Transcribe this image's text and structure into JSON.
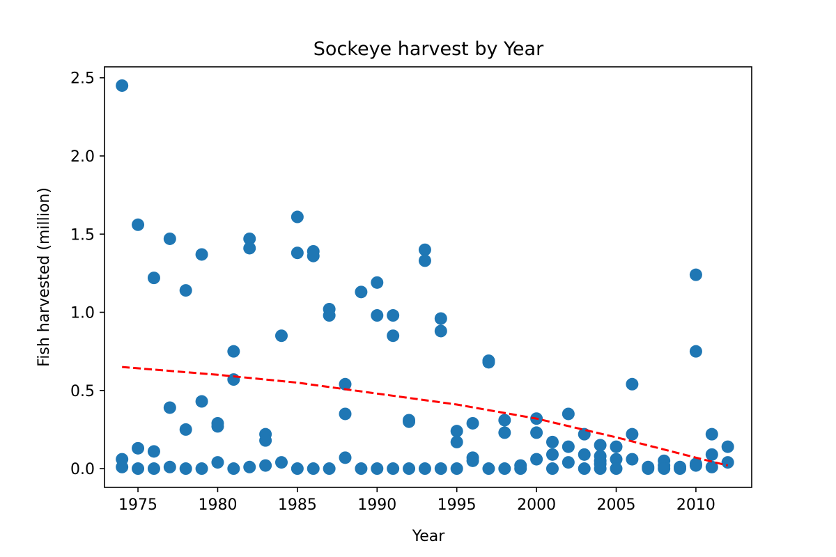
{
  "chart_data": {
    "type": "scatter",
    "title": "Sockeye harvest by Year",
    "xlabel": "Year",
    "ylabel": "Fish harvested (million)",
    "xlim": [
      1972.9,
      2013.5
    ],
    "ylim": [
      -0.12,
      2.57
    ],
    "x_ticks": [
      1975,
      1980,
      1985,
      1990,
      1995,
      2000,
      2005,
      2010
    ],
    "y_ticks": [
      0.0,
      0.5,
      1.0,
      1.5,
      2.0,
      2.5
    ],
    "y_tick_labels": [
      "0.0",
      "0.5",
      "1.0",
      "1.5",
      "2.0",
      "2.5"
    ],
    "grid": false,
    "point_color": "#1f77b4",
    "trend_color": "#ff0000",
    "points": [
      [
        1974,
        2.45
      ],
      [
        1974,
        0.06
      ],
      [
        1974,
        0.01
      ],
      [
        1975,
        1.56
      ],
      [
        1975,
        0.13
      ],
      [
        1975,
        0.0
      ],
      [
        1976,
        1.22
      ],
      [
        1976,
        0.11
      ],
      [
        1976,
        0.0
      ],
      [
        1977,
        1.47
      ],
      [
        1977,
        0.39
      ],
      [
        1977,
        0.01
      ],
      [
        1978,
        1.14
      ],
      [
        1978,
        0.25
      ],
      [
        1978,
        0.0
      ],
      [
        1979,
        1.37
      ],
      [
        1979,
        0.43
      ],
      [
        1979,
        0.0
      ],
      [
        1980,
        0.29
      ],
      [
        1980,
        0.27
      ],
      [
        1980,
        0.04
      ],
      [
        1981,
        0.75
      ],
      [
        1981,
        0.57
      ],
      [
        1981,
        0.0
      ],
      [
        1982,
        1.47
      ],
      [
        1982,
        1.41
      ],
      [
        1982,
        0.01
      ],
      [
        1983,
        0.22
      ],
      [
        1983,
        0.18
      ],
      [
        1983,
        0.02
      ],
      [
        1984,
        0.85
      ],
      [
        1984,
        0.04
      ],
      [
        1985,
        1.61
      ],
      [
        1985,
        1.38
      ],
      [
        1985,
        0.0
      ],
      [
        1986,
        1.39
      ],
      [
        1986,
        1.36
      ],
      [
        1986,
        0.0
      ],
      [
        1987,
        1.02
      ],
      [
        1987,
        0.98
      ],
      [
        1987,
        0.0
      ],
      [
        1988,
        0.54
      ],
      [
        1988,
        0.35
      ],
      [
        1988,
        0.07
      ],
      [
        1989,
        1.13
      ],
      [
        1989,
        0.0
      ],
      [
        1990,
        1.19
      ],
      [
        1990,
        0.98
      ],
      [
        1990,
        0.0
      ],
      [
        1991,
        0.98
      ],
      [
        1991,
        0.85
      ],
      [
        1991,
        0.0
      ],
      [
        1992,
        0.31
      ],
      [
        1992,
        0.3
      ],
      [
        1992,
        0.0
      ],
      [
        1993,
        1.4
      ],
      [
        1993,
        1.33
      ],
      [
        1993,
        0.0
      ],
      [
        1994,
        0.96
      ],
      [
        1994,
        0.88
      ],
      [
        1994,
        0.0
      ],
      [
        1995,
        0.24
      ],
      [
        1995,
        0.17
      ],
      [
        1995,
        0.0
      ],
      [
        1996,
        0.29
      ],
      [
        1996,
        0.07
      ],
      [
        1996,
        0.05
      ],
      [
        1997,
        0.69
      ],
      [
        1997,
        0.68
      ],
      [
        1997,
        0.0
      ],
      [
        1998,
        0.31
      ],
      [
        1998,
        0.23
      ],
      [
        1998,
        0.0
      ],
      [
        1999,
        0.02
      ],
      [
        1999,
        0.0
      ],
      [
        2000,
        0.32
      ],
      [
        2000,
        0.23
      ],
      [
        2000,
        0.06
      ],
      [
        2001,
        0.17
      ],
      [
        2001,
        0.09
      ],
      [
        2001,
        0.0
      ],
      [
        2002,
        0.35
      ],
      [
        2002,
        0.14
      ],
      [
        2002,
        0.04
      ],
      [
        2003,
        0.22
      ],
      [
        2003,
        0.09
      ],
      [
        2003,
        0.0
      ],
      [
        2004,
        0.15
      ],
      [
        2004,
        0.08
      ],
      [
        2004,
        0.05
      ],
      [
        2004,
        0.03
      ],
      [
        2004,
        0.0
      ],
      [
        2005,
        0.14
      ],
      [
        2005,
        0.06
      ],
      [
        2005,
        0.0
      ],
      [
        2006,
        0.54
      ],
      [
        2006,
        0.22
      ],
      [
        2006,
        0.06
      ],
      [
        2007,
        0.01
      ],
      [
        2007,
        0.0
      ],
      [
        2008,
        0.05
      ],
      [
        2008,
        0.02
      ],
      [
        2008,
        0.0
      ],
      [
        2009,
        0.01
      ],
      [
        2009,
        0.0
      ],
      [
        2010,
        1.24
      ],
      [
        2010,
        0.75
      ],
      [
        2010,
        0.03
      ],
      [
        2010,
        0.02
      ],
      [
        2011,
        0.22
      ],
      [
        2011,
        0.09
      ],
      [
        2011,
        0.01
      ],
      [
        2012,
        0.14
      ],
      [
        2012,
        0.04
      ]
    ],
    "trend_line": {
      "style": "dashed",
      "x": [
        1974,
        1980,
        1985,
        1990,
        1995,
        2000,
        2005,
        2010,
        2012
      ],
      "y": [
        0.65,
        0.6,
        0.55,
        0.48,
        0.41,
        0.32,
        0.2,
        0.07,
        0.02
      ]
    }
  }
}
